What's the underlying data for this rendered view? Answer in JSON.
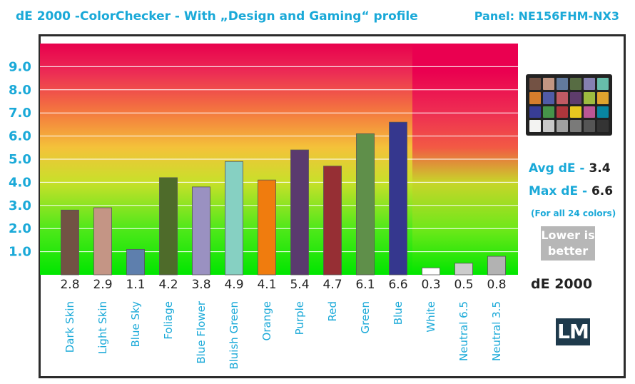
{
  "header": {
    "title": "dE 2000 -ColorChecker - With „Design and Gaming“ profile",
    "panel": "Panel: NE156FHM-NX3"
  },
  "chart_data": {
    "type": "bar",
    "title": "dE 2000 -ColorChecker - With „Design and Gaming“ profile",
    "ylabel": "",
    "xlabel": "",
    "ylim": [
      0,
      10
    ],
    "yticks": [
      "1.0",
      "2.0",
      "3.0",
      "4.0",
      "5.0",
      "6.0",
      "7.0",
      "8.0",
      "9.0"
    ],
    "grid": true,
    "categories": [
      "Dark Skin",
      "Light Skin",
      "Blue Sky",
      "Foliage",
      "Blue Flower",
      "Bluish Green",
      "Orange",
      "Purple",
      "Red",
      "Green",
      "Blue",
      "White",
      "Neutral 6.5",
      "Neutral 3.5"
    ],
    "values": [
      2.8,
      2.9,
      1.1,
      4.2,
      3.8,
      4.9,
      4.1,
      5.4,
      4.7,
      6.1,
      6.6,
      0.3,
      0.5,
      0.8
    ],
    "value_labels": [
      "2.8",
      "2.9",
      "1.1",
      "4.2",
      "3.8",
      "4.9",
      "4.1",
      "5.4",
      "4.7",
      "6.1",
      "6.6",
      "0.3",
      "0.5",
      "0.8"
    ],
    "bar_colors": [
      "#735244",
      "#c29682",
      "#627a9d",
      "#576c43",
      "#8580b1",
      "#67bdaa",
      "#d67e2c",
      "#505ba6",
      "#c15a63",
      "#5e3c6c",
      "#9dbc40",
      "#e0a32e",
      "#383d96",
      "#469449"
    ],
    "colors": {
      "bg_top": "#e8004c",
      "bg_mid": "#f5c531",
      "bg_bottom": "#00e800",
      "axis_text": "#1aa9d8",
      "value_text": "#222222"
    }
  },
  "bar_fill_colors": [
    "#725244",
    "#c49585",
    "#5e7fad",
    "#4e6b2a",
    "#9a91c1",
    "#86d0c2",
    "#f07c0e",
    "#5a3a6e",
    "#962f34",
    "#5f8f4a",
    "#35378e",
    "#ffffff",
    "#cccccc",
    "#b2b2b2"
  ],
  "swatches": [
    "#735244",
    "#c29682",
    "#627a9d",
    "#576c43",
    "#8580b1",
    "#67bdaa",
    "#d67e2c",
    "#505ba6",
    "#c15a63",
    "#5e3c6c",
    "#9dbc40",
    "#e0a32e",
    "#383d96",
    "#469449",
    "#af363c",
    "#e7c71f",
    "#bb5695",
    "#0885a1",
    "#f3f3f2",
    "#c8c8c8",
    "#a0a0a0",
    "#7a7a79",
    "#555555",
    "#343434"
  ],
  "stats": {
    "avg_label": "Avg dE -",
    "avg_value": "3.4",
    "max_label": "Max dE -",
    "max_value": "6.6",
    "note": "(For all 24 colors)",
    "badge_line1": "Lower is",
    "badge_line2": "better",
    "metric": "dE 2000",
    "logo": "LM"
  }
}
